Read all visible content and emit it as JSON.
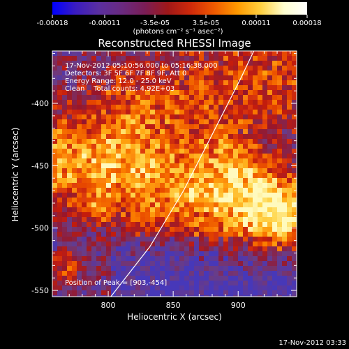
{
  "colorbar": {
    "ticks": [
      "-0.00018",
      "-0.00011",
      "-3.5e-05",
      "3.5e-05",
      "0.00011",
      "0.00018"
    ],
    "units": "(photons cm⁻² s⁻¹ asec⁻²)"
  },
  "chart_data": {
    "type": "heatmap",
    "title": "Reconstructed RHESSI Image",
    "xlabel": "Heliocentric X (arcsec)",
    "ylabel": "Heliocentric Y (arcsec)",
    "xlim": [
      757,
      945
    ],
    "ylim": [
      -555,
      -358
    ],
    "xticks": [
      "800",
      "850",
      "900"
    ],
    "yticks": [
      "-400",
      "-450",
      "-500",
      "-550"
    ],
    "annotations": [
      "17-Nov-2012 05:10:56.000 to 05:16:38.000",
      "Detectors: 3F 5F 6F 7F 8F 9F, Att 0",
      "Energy Range: 12.0 - 25.0 keV",
      "Clean    Total counts: 4.92E+03"
    ],
    "peak_label": "Position of Peak = [903,-454]",
    "peak": [
      903,
      -454
    ],
    "limb_curve": [
      [
        802,
        -555
      ],
      [
        832,
        -515
      ],
      [
        858,
        -470
      ],
      [
        880,
        -425
      ],
      [
        902,
        -380
      ],
      [
        912,
        -358
      ]
    ],
    "colormap": [
      "#0000ff",
      "#5a2fb0",
      "#7a4a8a",
      "#902020",
      "#e04010",
      "#ff9a10",
      "#ffffd0"
    ]
  },
  "footer_timestamp": "17-Nov-2012 03:33"
}
